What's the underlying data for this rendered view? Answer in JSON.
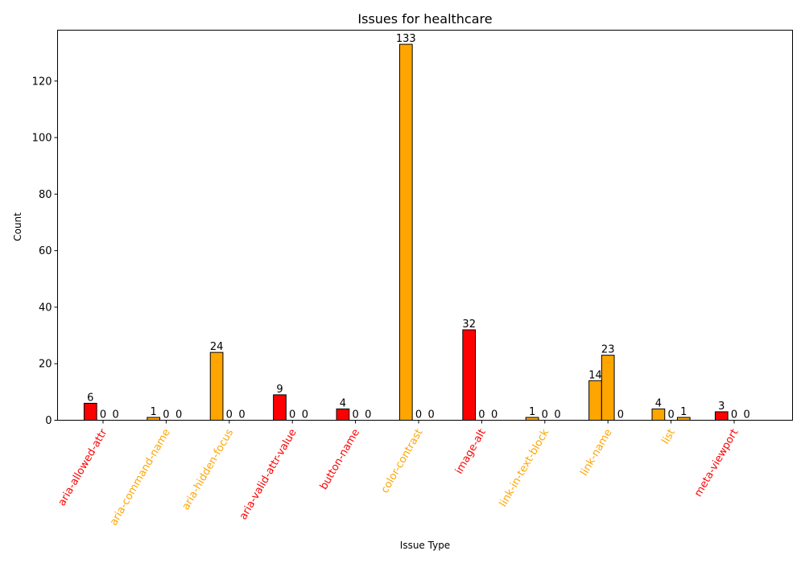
{
  "chart_data": {
    "type": "bar",
    "title": "Issues for healthcare",
    "xlabel": "Issue Type",
    "ylabel": "Count",
    "ylim": [
      0,
      138
    ],
    "yticks": [
      0,
      20,
      40,
      60,
      80,
      100,
      120
    ],
    "grid": false,
    "categories": [
      "aria-allowed-attr",
      "aria-command-name",
      "aria-hidden-focus",
      "aria-valid-attr-value",
      "button-name",
      "color-contrast",
      "image-alt",
      "link-in-text-block",
      "link-name",
      "list",
      "meta-viewport"
    ],
    "category_colors": [
      "#ff0000",
      "#ffa500",
      "#ffa500",
      "#ff0000",
      "#ff0000",
      "#ffa500",
      "#ff0000",
      "#ffa500",
      "#ffa500",
      "#ffa500",
      "#ff0000"
    ],
    "series": [
      {
        "values": [
          6,
          1,
          24,
          9,
          4,
          133,
          32,
          1,
          14,
          4,
          3
        ],
        "colors": [
          "#ff0000",
          "#ffa500",
          "#ffa500",
          "#ff0000",
          "#ff0000",
          "#ffa500",
          "#ff0000",
          "#ffa500",
          "#ffa500",
          "#ffa500",
          "#ff0000"
        ]
      },
      {
        "values": [
          0,
          0,
          0,
          0,
          0,
          0,
          0,
          0,
          23,
          0,
          0
        ],
        "colors": [
          "#ffa500",
          "#ffa500",
          "#ffa500",
          "#ffa500",
          "#ffa500",
          "#ffa500",
          "#ffa500",
          "#ffa500",
          "#ffa500",
          "#ffa500",
          "#ffa500"
        ]
      },
      {
        "values": [
          0,
          0,
          0,
          0,
          0,
          0,
          0,
          0,
          0,
          1,
          0
        ],
        "colors": [
          "#ffa500",
          "#ffa500",
          "#ffa500",
          "#ffa500",
          "#ffa500",
          "#ffa500",
          "#ffa500",
          "#ffa500",
          "#ffa500",
          "#ffa500",
          "#ffa500"
        ]
      }
    ]
  }
}
